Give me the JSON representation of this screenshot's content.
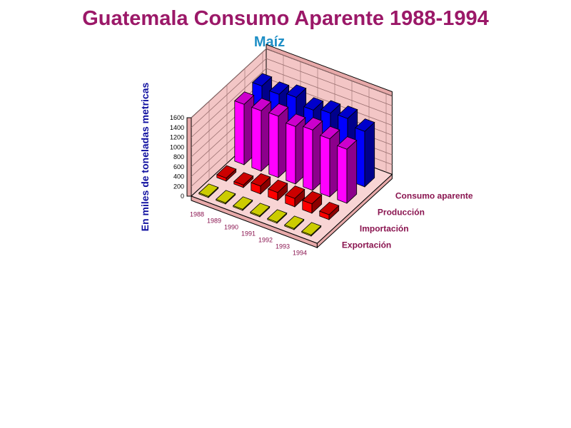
{
  "colors": {
    "title": "#9b1868",
    "subtitle": "#1f8fc6",
    "ylabel": "#1010a0",
    "tick": "#8a1550",
    "series_label": "#8a1550",
    "wall": "#f3c6c6",
    "wall_dark": "#e7a9a9",
    "floor": "#f8d4d4",
    "grid": "#9a7070"
  },
  "chart_data": {
    "type": "bar",
    "title": "Guatemala Consumo Aparente 1988-1994",
    "subtitle": "Maíz",
    "ylabel": "En miles de toneladas metricas",
    "categories": [
      "1988",
      "1989",
      "1990",
      "1991",
      "1992",
      "1993",
      "1994"
    ],
    "yticks": [
      "0",
      "200",
      "400",
      "600",
      "800",
      "1000",
      "1200",
      "1400",
      "1600"
    ],
    "ylim": [
      0,
      1600
    ],
    "series": [
      {
        "name": "Exportación",
        "color": "#ffff00",
        "values": [
          0,
          0,
          0,
          0,
          0,
          0,
          0
        ]
      },
      {
        "name": "Importación",
        "color": "#ff0000",
        "values": [
          60,
          50,
          160,
          160,
          170,
          190,
          100
        ]
      },
      {
        "name": "Producción",
        "color": "#ff00ff",
        "values": [
          1230,
          1230,
          1250,
          1170,
          1230,
          1180,
          1100
        ]
      },
      {
        "name": "Consumo aparente",
        "color": "#0000ff",
        "values": [
          1270,
          1230,
          1300,
          1170,
          1240,
          1260,
          1130
        ]
      }
    ]
  }
}
